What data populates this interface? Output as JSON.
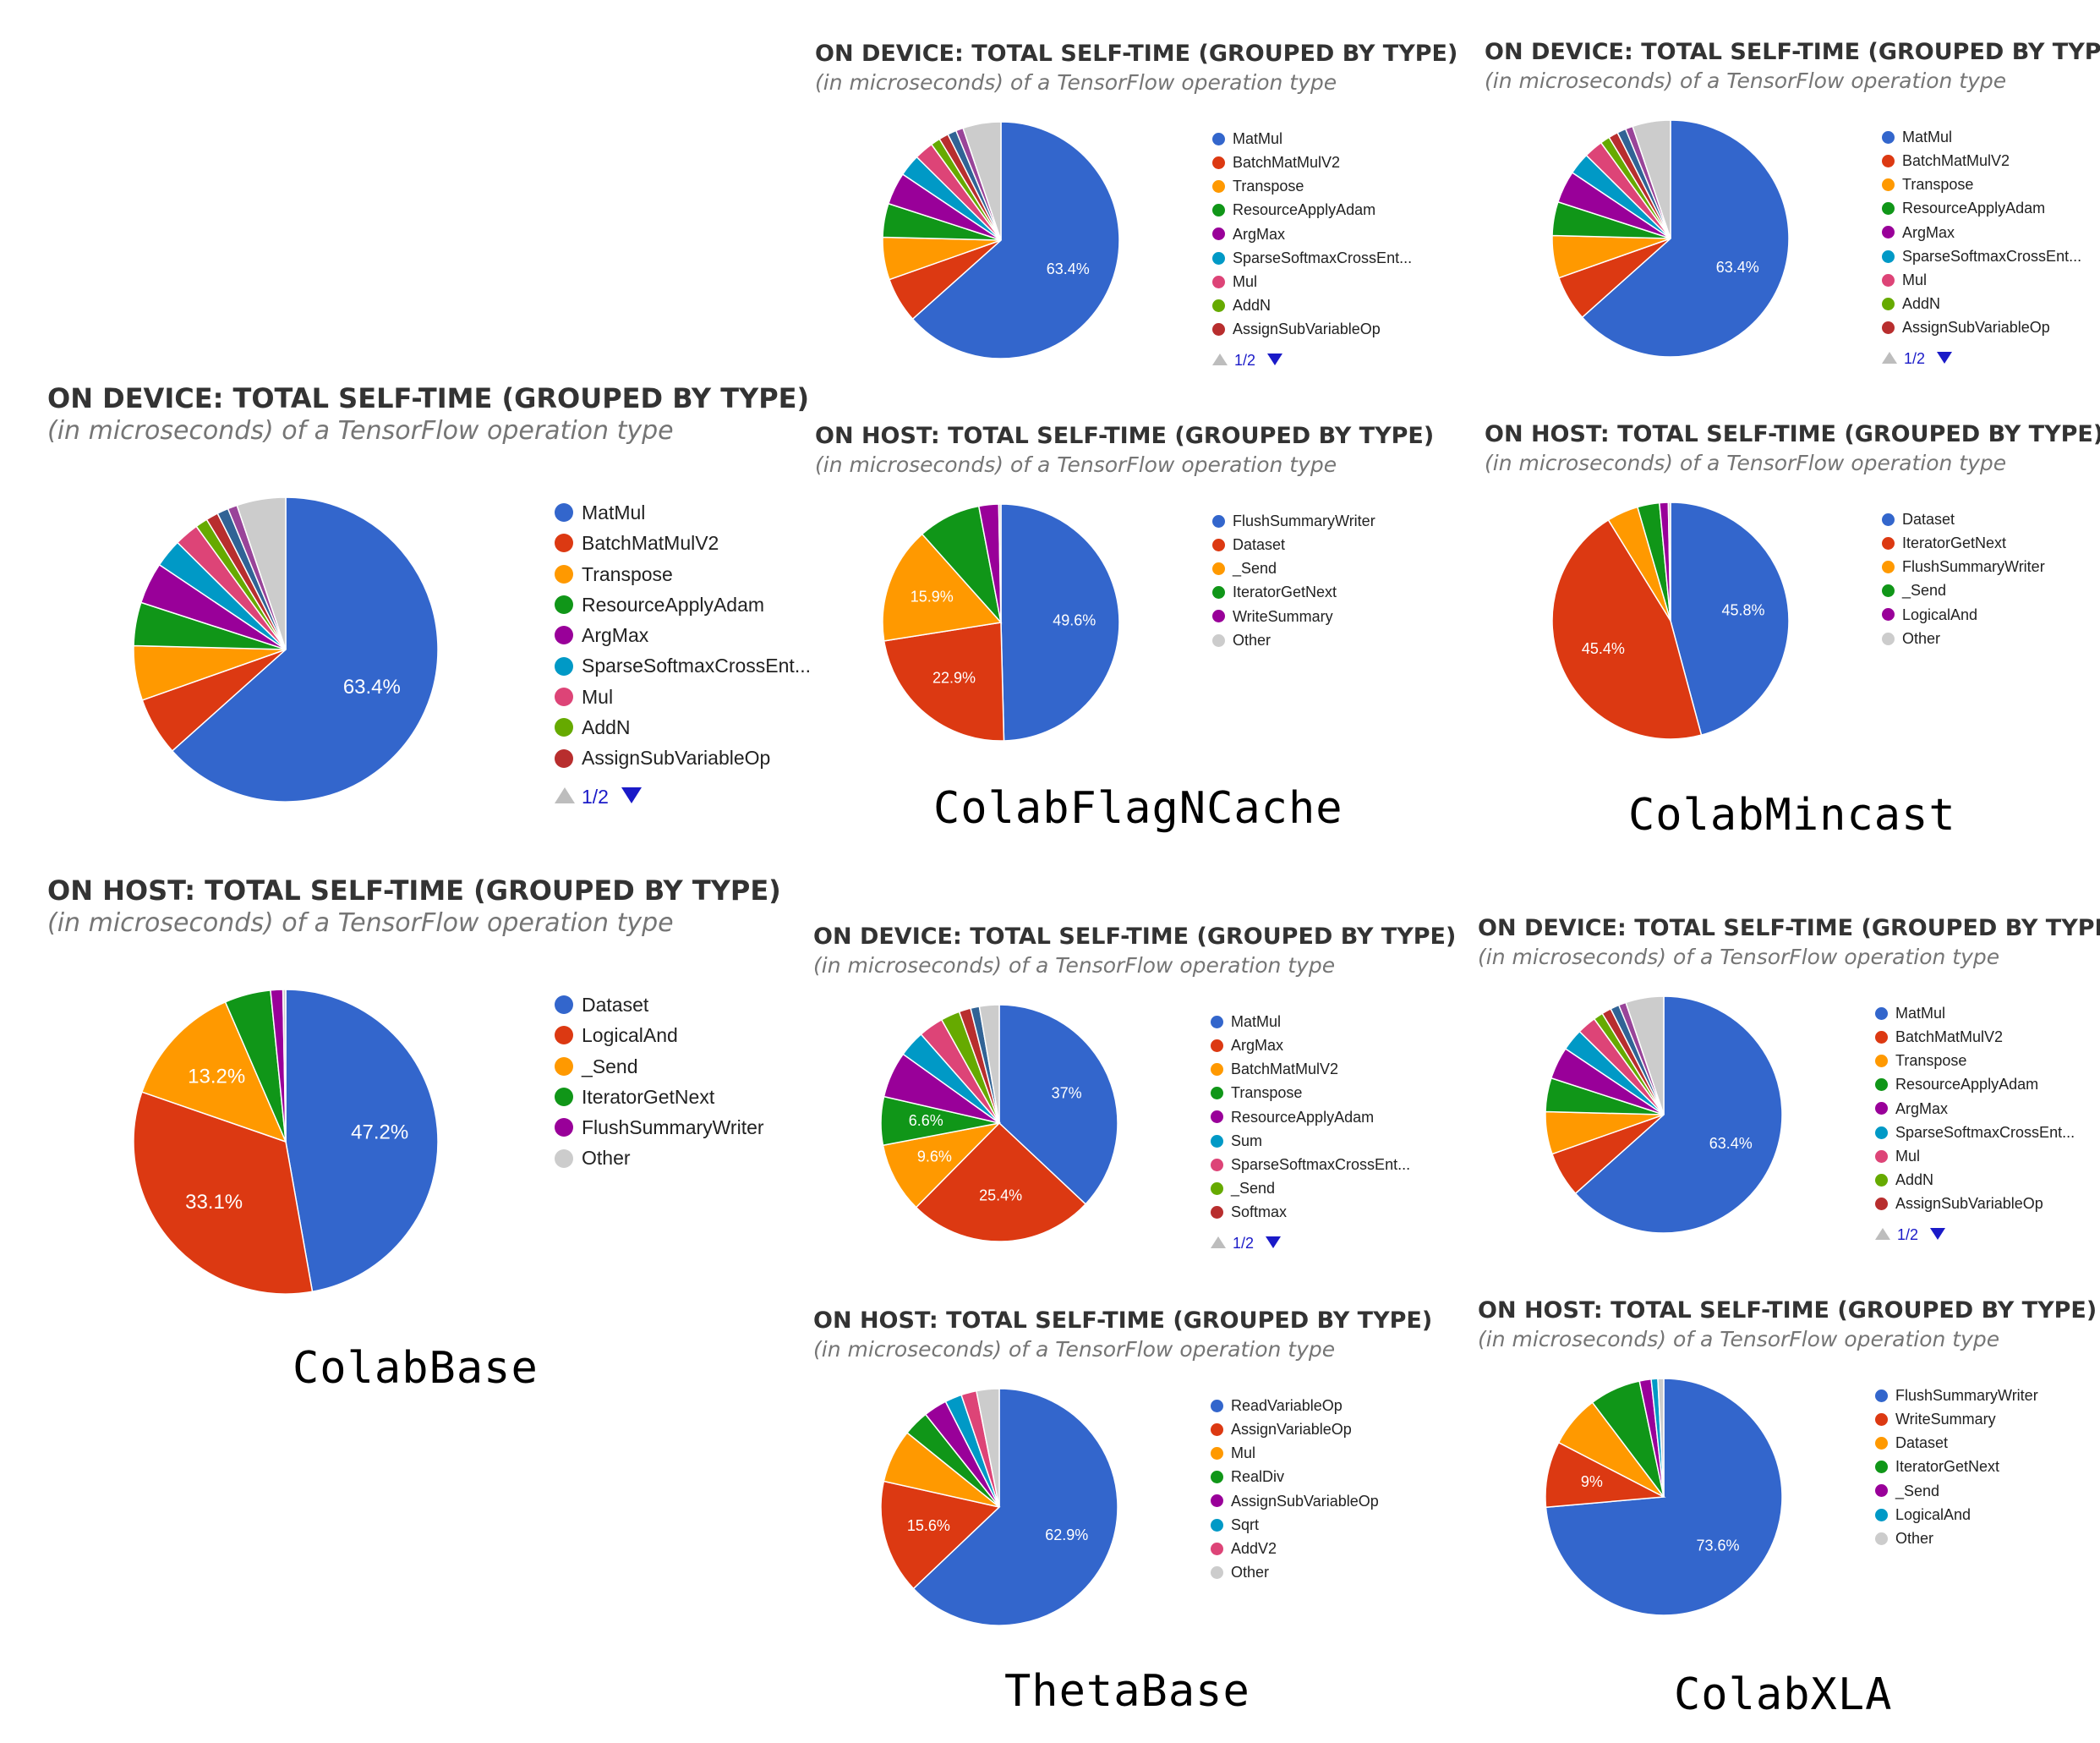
{
  "colors": {
    "blue": "#3366cc",
    "red": "#dc3912",
    "orange": "#ff9900",
    "green": "#109618",
    "purple": "#990099",
    "cyan": "#0099c6",
    "pink": "#dd4477",
    "lime": "#66aa00",
    "darkred": "#b82e2e",
    "navy": "#316395",
    "violet": "#994499",
    "grey": "#cccccc"
  },
  "config_labels": {
    "colab_base": "ColabBase",
    "colab_flagncache": "ColabFlagNCache",
    "colab_mincast": "ColabMincast",
    "theta_base": "ThetaBase",
    "colab_xla": "ColabXLA"
  },
  "chart_data": [
    {
      "id": "colabbase-device",
      "type": "pie",
      "title": "ON DEVICE: TOTAL SELF-TIME (GROUPED BY TYPE)",
      "subtitle": "(in microseconds) of a TensorFlow operation type",
      "legend_position": "right",
      "slices": [
        {
          "label": "MatMul",
          "value": 63.4,
          "color": "#3366cc",
          "show_pct": true
        },
        {
          "label": "BatchMatMulV2",
          "value": 6.2,
          "color": "#dc3912"
        },
        {
          "label": "Transpose",
          "value": 5.8,
          "color": "#ff9900"
        },
        {
          "label": "ResourceApplyAdam",
          "value": 4.6,
          "color": "#109618"
        },
        {
          "label": "ArgMax",
          "value": 4.4,
          "color": "#990099"
        },
        {
          "label": "SparseSoftmaxCrossEnt...",
          "value": 3.0,
          "color": "#0099c6"
        },
        {
          "label": "Mul",
          "value": 2.6,
          "color": "#dd4477"
        },
        {
          "label": "AddN",
          "value": 1.3,
          "color": "#66aa00"
        },
        {
          "label": "AssignSubVariableOp",
          "value": 1.3,
          "color": "#b82e2e"
        },
        {
          "label": "",
          "value": 1.2,
          "color": "#316395"
        },
        {
          "label": "",
          "value": 1.0,
          "color": "#994499"
        },
        {
          "label": "",
          "value": 5.2,
          "color": "#cccccc"
        }
      ],
      "legend_count": 9,
      "pager": "1/2"
    },
    {
      "id": "colabbase-host",
      "type": "pie",
      "title": "ON HOST: TOTAL SELF-TIME (GROUPED BY TYPE)",
      "subtitle": "(in microseconds) of a TensorFlow operation type",
      "legend_position": "right",
      "slices": [
        {
          "label": "Dataset",
          "value": 47.2,
          "color": "#3366cc",
          "show_pct": true
        },
        {
          "label": "LogicalAnd",
          "value": 33.1,
          "color": "#dc3912",
          "show_pct": true
        },
        {
          "label": "_Send",
          "value": 13.2,
          "color": "#ff9900",
          "show_pct": true
        },
        {
          "label": "IteratorGetNext",
          "value": 4.9,
          "color": "#109618"
        },
        {
          "label": "FlushSummaryWriter",
          "value": 1.3,
          "color": "#990099"
        },
        {
          "label": "Other",
          "value": 0.3,
          "color": "#cccccc"
        }
      ],
      "legend_count": 6
    },
    {
      "id": "flagncache-device",
      "type": "pie",
      "title": "ON DEVICE: TOTAL SELF-TIME (GROUPED BY TYPE)",
      "subtitle": "(in microseconds) of a TensorFlow operation type",
      "legend_position": "right",
      "slices": [
        {
          "label": "MatMul",
          "value": 63.4,
          "color": "#3366cc",
          "show_pct": true
        },
        {
          "label": "BatchMatMulV2",
          "value": 6.2,
          "color": "#dc3912"
        },
        {
          "label": "Transpose",
          "value": 5.8,
          "color": "#ff9900"
        },
        {
          "label": "ResourceApplyAdam",
          "value": 4.6,
          "color": "#109618"
        },
        {
          "label": "ArgMax",
          "value": 4.4,
          "color": "#990099"
        },
        {
          "label": "SparseSoftmaxCrossEnt...",
          "value": 3.0,
          "color": "#0099c6"
        },
        {
          "label": "Mul",
          "value": 2.6,
          "color": "#dd4477"
        },
        {
          "label": "AddN",
          "value": 1.3,
          "color": "#66aa00"
        },
        {
          "label": "AssignSubVariableOp",
          "value": 1.3,
          "color": "#b82e2e"
        },
        {
          "label": "",
          "value": 1.2,
          "color": "#316395"
        },
        {
          "label": "",
          "value": 1.0,
          "color": "#994499"
        },
        {
          "label": "",
          "value": 5.2,
          "color": "#cccccc"
        }
      ],
      "legend_count": 9,
      "pager": "1/2"
    },
    {
      "id": "flagncache-host",
      "type": "pie",
      "title": "ON HOST: TOTAL SELF-TIME (GROUPED BY TYPE)",
      "subtitle": "(in microseconds) of a TensorFlow operation type",
      "legend_position": "right",
      "slices": [
        {
          "label": "FlushSummaryWriter",
          "value": 49.6,
          "color": "#3366cc",
          "show_pct": true
        },
        {
          "label": "Dataset",
          "value": 22.9,
          "color": "#dc3912",
          "show_pct": true
        },
        {
          "label": "_Send",
          "value": 15.9,
          "color": "#ff9900",
          "show_pct": true
        },
        {
          "label": "IteratorGetNext",
          "value": 8.6,
          "color": "#109618"
        },
        {
          "label": "WriteSummary",
          "value": 2.7,
          "color": "#990099"
        },
        {
          "label": "Other",
          "value": 0.3,
          "color": "#cccccc"
        }
      ],
      "legend_count": 6
    },
    {
      "id": "mincast-device",
      "type": "pie",
      "title": "ON DEVICE: TOTAL SELF-TIME (GROUPED BY TYPE)",
      "subtitle": "(in microseconds) of a TensorFlow operation type",
      "legend_position": "right",
      "slices": [
        {
          "label": "MatMul",
          "value": 63.4,
          "color": "#3366cc",
          "show_pct": true
        },
        {
          "label": "BatchMatMulV2",
          "value": 6.2,
          "color": "#dc3912"
        },
        {
          "label": "Transpose",
          "value": 5.8,
          "color": "#ff9900"
        },
        {
          "label": "ResourceApplyAdam",
          "value": 4.6,
          "color": "#109618"
        },
        {
          "label": "ArgMax",
          "value": 4.4,
          "color": "#990099"
        },
        {
          "label": "SparseSoftmaxCrossEnt...",
          "value": 3.0,
          "color": "#0099c6"
        },
        {
          "label": "Mul",
          "value": 2.6,
          "color": "#dd4477"
        },
        {
          "label": "AddN",
          "value": 1.3,
          "color": "#66aa00"
        },
        {
          "label": "AssignSubVariableOp",
          "value": 1.3,
          "color": "#b82e2e"
        },
        {
          "label": "",
          "value": 1.2,
          "color": "#316395"
        },
        {
          "label": "",
          "value": 1.0,
          "color": "#994499"
        },
        {
          "label": "",
          "value": 5.2,
          "color": "#cccccc"
        }
      ],
      "legend_count": 9,
      "pager": "1/2"
    },
    {
      "id": "mincast-host",
      "type": "pie",
      "title": "ON HOST: TOTAL SELF-TIME (GROUPED BY TYPE)",
      "subtitle": "(in microseconds) of a TensorFlow operation type",
      "legend_position": "right",
      "slices": [
        {
          "label": "Dataset",
          "value": 45.8,
          "color": "#3366cc",
          "show_pct": true
        },
        {
          "label": "IteratorGetNext",
          "value": 45.4,
          "color": "#dc3912",
          "show_pct": true
        },
        {
          "label": "FlushSummaryWriter",
          "value": 4.3,
          "color": "#ff9900"
        },
        {
          "label": "_Send",
          "value": 3.0,
          "color": "#109618"
        },
        {
          "label": "LogicalAnd",
          "value": 1.2,
          "color": "#990099"
        },
        {
          "label": "Other",
          "value": 0.3,
          "color": "#cccccc"
        }
      ],
      "legend_count": 6
    },
    {
      "id": "thetabase-device",
      "type": "pie",
      "title": "ON DEVICE: TOTAL SELF-TIME (GROUPED BY TYPE)",
      "subtitle": "(in microseconds) of a TensorFlow operation type",
      "legend_position": "right",
      "slices": [
        {
          "label": "MatMul",
          "value": 37,
          "color": "#3366cc",
          "show_pct": true
        },
        {
          "label": "ArgMax",
          "value": 25.4,
          "color": "#dc3912",
          "show_pct": true
        },
        {
          "label": "BatchMatMulV2",
          "value": 9.6,
          "color": "#ff9900",
          "show_pct": true
        },
        {
          "label": "Transpose",
          "value": 6.6,
          "color": "#109618",
          "show_pct": true
        },
        {
          "label": "ResourceApplyAdam",
          "value": 6.3,
          "color": "#990099"
        },
        {
          "label": "Sum",
          "value": 3.6,
          "color": "#0099c6"
        },
        {
          "label": "SparseSoftmaxCrossEnt...",
          "value": 3.4,
          "color": "#dd4477"
        },
        {
          "label": "_Send",
          "value": 2.6,
          "color": "#66aa00"
        },
        {
          "label": "Softmax",
          "value": 1.6,
          "color": "#b82e2e"
        },
        {
          "label": "",
          "value": 1.2,
          "color": "#316395"
        },
        {
          "label": "",
          "value": 2.7,
          "color": "#cccccc"
        }
      ],
      "legend_count": 9,
      "pager": "1/2"
    },
    {
      "id": "thetabase-host",
      "type": "pie",
      "title": "ON HOST: TOTAL SELF-TIME (GROUPED BY TYPE)",
      "subtitle": "(in microseconds) of a TensorFlow operation type",
      "legend_position": "right",
      "slices": [
        {
          "label": "ReadVariableOp",
          "value": 62.9,
          "color": "#3366cc",
          "show_pct": true
        },
        {
          "label": "AssignVariableOp",
          "value": 15.6,
          "color": "#dc3912",
          "show_pct": true
        },
        {
          "label": "Mul",
          "value": 7.3,
          "color": "#ff9900"
        },
        {
          "label": "RealDiv",
          "value": 3.5,
          "color": "#109618"
        },
        {
          "label": "AssignSubVariableOp",
          "value": 3.2,
          "color": "#990099"
        },
        {
          "label": "Sqrt",
          "value": 2.3,
          "color": "#0099c6"
        },
        {
          "label": "AddV2",
          "value": 2.1,
          "color": "#dd4477"
        },
        {
          "label": "Other",
          "value": 3.1,
          "color": "#cccccc"
        }
      ],
      "legend_count": 8
    },
    {
      "id": "xla-device",
      "type": "pie",
      "title": "ON DEVICE: TOTAL SELF-TIME (GROUPED BY TYPE)",
      "subtitle": "(in microseconds) of a TensorFlow operation type",
      "legend_position": "right",
      "slices": [
        {
          "label": "MatMul",
          "value": 63.4,
          "color": "#3366cc",
          "show_pct": true
        },
        {
          "label": "BatchMatMulV2",
          "value": 6.2,
          "color": "#dc3912"
        },
        {
          "label": "Transpose",
          "value": 5.8,
          "color": "#ff9900"
        },
        {
          "label": "ResourceApplyAdam",
          "value": 4.6,
          "color": "#109618"
        },
        {
          "label": "ArgMax",
          "value": 4.4,
          "color": "#990099"
        },
        {
          "label": "SparseSoftmaxCrossEnt...",
          "value": 3.0,
          "color": "#0099c6"
        },
        {
          "label": "Mul",
          "value": 2.6,
          "color": "#dd4477"
        },
        {
          "label": "AddN",
          "value": 1.3,
          "color": "#66aa00"
        },
        {
          "label": "AssignSubVariableOp",
          "value": 1.3,
          "color": "#b82e2e"
        },
        {
          "label": "",
          "value": 1.2,
          "color": "#316395"
        },
        {
          "label": "",
          "value": 1.0,
          "color": "#994499"
        },
        {
          "label": "",
          "value": 5.2,
          "color": "#cccccc"
        }
      ],
      "legend_count": 9,
      "pager": "1/2"
    },
    {
      "id": "xla-host",
      "type": "pie",
      "title": "ON HOST: TOTAL SELF-TIME (GROUPED BY TYPE)",
      "subtitle": "(in microseconds) of a TensorFlow operation type",
      "legend_position": "right",
      "slices": [
        {
          "label": "FlushSummaryWriter",
          "value": 73.6,
          "color": "#3366cc",
          "show_pct": true
        },
        {
          "label": "WriteSummary",
          "value": 9,
          "color": "#dc3912",
          "show_pct": true
        },
        {
          "label": "Dataset",
          "value": 7.1,
          "color": "#ff9900"
        },
        {
          "label": "IteratorGetNext",
          "value": 7.0,
          "color": "#109618"
        },
        {
          "label": "_Send",
          "value": 1.6,
          "color": "#990099"
        },
        {
          "label": "LogicalAnd",
          "value": 0.9,
          "color": "#0099c6"
        },
        {
          "label": "Other",
          "value": 0.8,
          "color": "#cccccc"
        }
      ],
      "legend_count": 7
    }
  ]
}
